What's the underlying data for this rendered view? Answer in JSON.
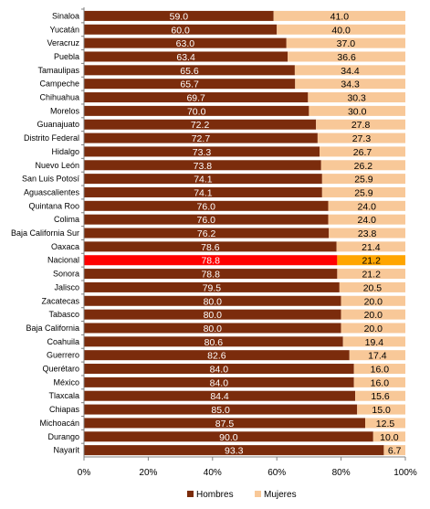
{
  "chart_data": {
    "type": "bar",
    "orientation": "horizontal",
    "stacked": "percent",
    "categories": [
      "Sinaloa",
      "Yucatán",
      "Veracruz",
      "Puebla",
      "Tamaulipas",
      "Campeche",
      "Chihuahua",
      "Morelos",
      "Guanajuato",
      "Distrito Federal",
      "Hidalgo",
      "Nuevo León",
      "San Luis Potosí",
      "Aguascalientes",
      "Quintana Roo",
      "Colima",
      "Baja California Sur",
      "Oaxaca",
      "Nacional",
      "Sonora",
      "Jalisco",
      "Zacatecas",
      "Tabasco",
      "Baja California",
      "Coahuila",
      "Guerrero",
      "Querétaro",
      "México",
      "Tlaxcala",
      "Chiapas",
      "Michoacán",
      "Durango",
      "Nayarit"
    ],
    "series": [
      {
        "name": "Hombres",
        "color": "#7b2c0c",
        "values": [
          "59.0",
          "60.0",
          "63.0",
          "63.4",
          "65.6",
          "65.7",
          "69.7",
          "70.0",
          "72.2",
          "72.7",
          "73.3",
          "73.8",
          "74.1",
          "74.1",
          "76.0",
          "76.0",
          "76.2",
          "78.6",
          "78.8",
          "78.8",
          "79.5",
          "80.0",
          "80.0",
          "80.0",
          "80.6",
          "82.6",
          "84.0",
          "84.0",
          "84.4",
          "85.0",
          "87.5",
          "90.0",
          "93.3"
        ]
      },
      {
        "name": "Mujeres",
        "color": "#f8c898",
        "values": [
          "41.0",
          "40.0",
          "37.0",
          "36.6",
          "34.4",
          "34.3",
          "30.3",
          "30.0",
          "27.8",
          "27.3",
          "26.7",
          "26.2",
          "25.9",
          "25.9",
          "24.0",
          "24.0",
          "23.8",
          "21.4",
          "21.2",
          "21.2",
          "20.5",
          "20.0",
          "20.0",
          "20.0",
          "19.4",
          "17.4",
          "16.0",
          "16.0",
          "15.6",
          "15.0",
          "12.5",
          "10.0",
          "6.7"
        ]
      }
    ],
    "highlight": {
      "category": "Nacional",
      "hombres_color": "#ff0000",
      "mujeres_color": "#ffa500"
    },
    "xticks": [
      "0%",
      "20%",
      "40%",
      "60%",
      "80%",
      "100%"
    ],
    "xlim": [
      0,
      100
    ],
    "legend_position": "bottom",
    "legend": [
      "Hombres",
      "Mujeres"
    ]
  }
}
